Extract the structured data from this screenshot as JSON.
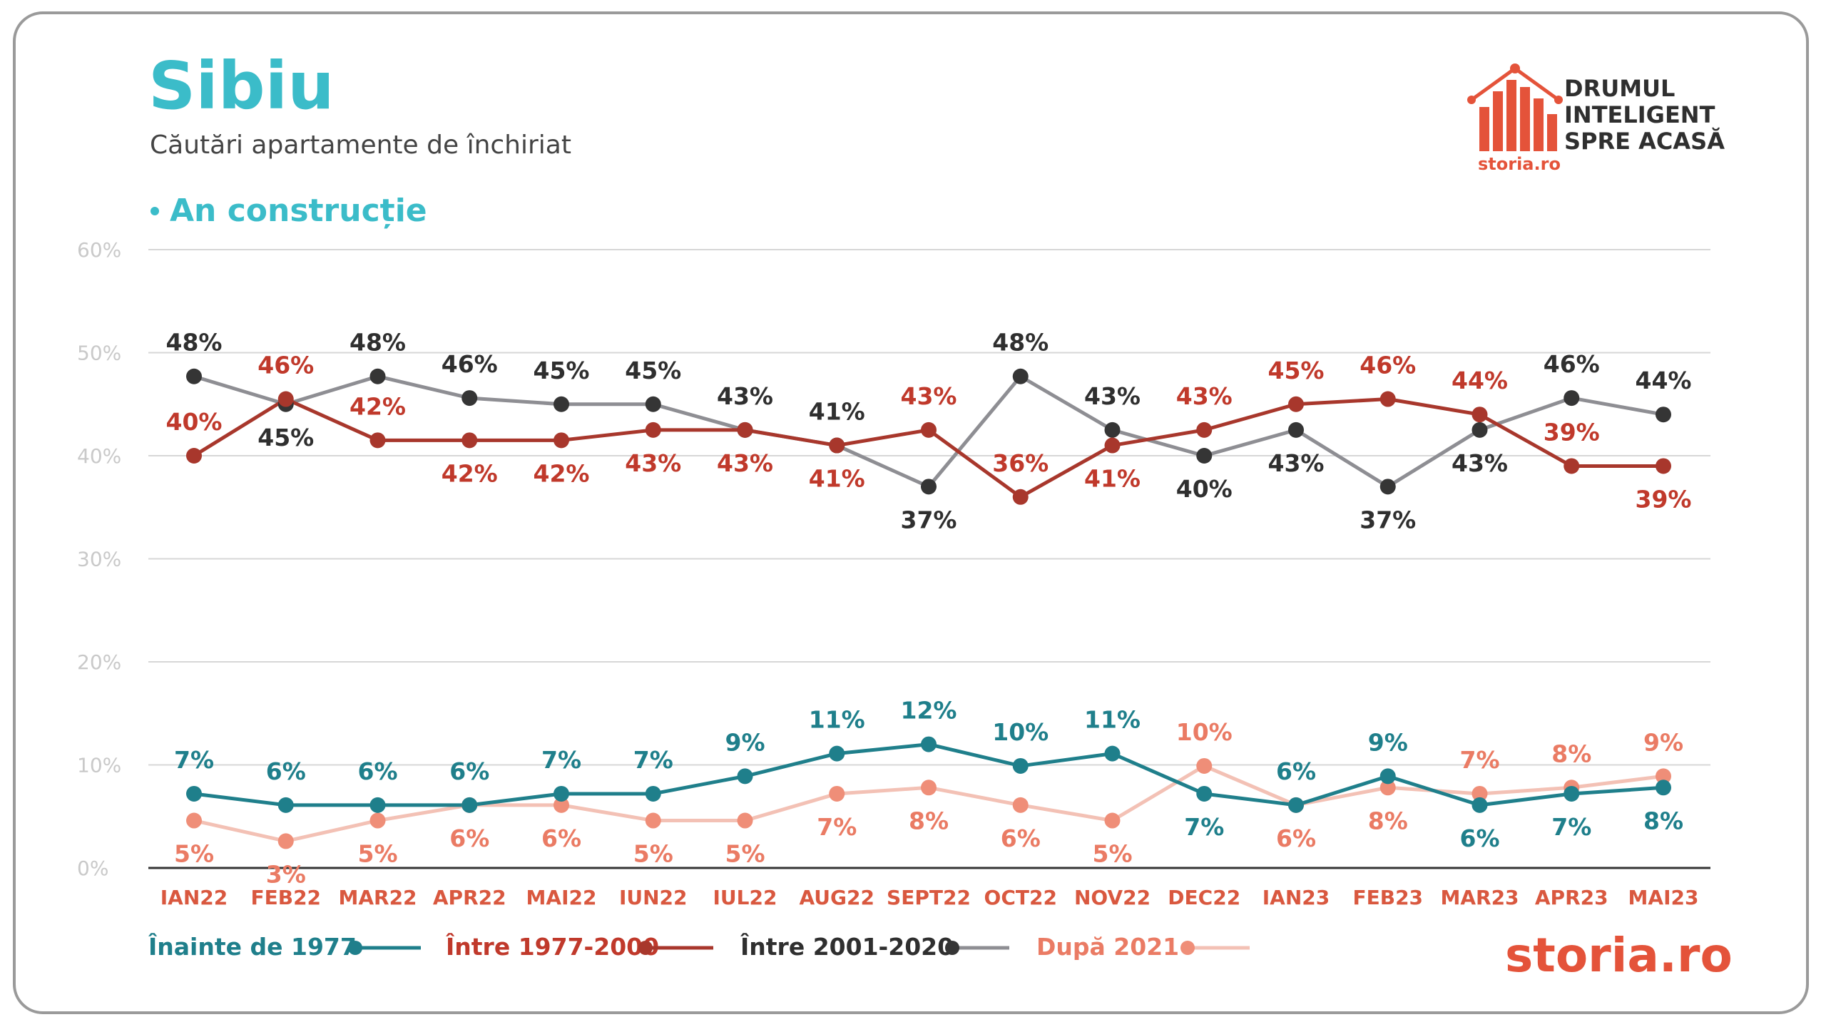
{
  "header": {
    "title": "Sibiu",
    "subtitle": "Căutări apartamente de închiriat",
    "section_label": "An construcție"
  },
  "logo": {
    "lines": [
      "DRUMUL",
      "INTELIGENT",
      "SPRE ACASĂ"
    ],
    "badge_text": "storia.ro",
    "brand_text": "storia.ro"
  },
  "chart_data": {
    "type": "line",
    "title": "Sibiu",
    "subtitle": "Căutări apartamente de închiriat",
    "categories": [
      "IAN22",
      "FEB22",
      "MAR22",
      "APR22",
      "MAI22",
      "IUN22",
      "IUL22",
      "AUG22",
      "SEPT22",
      "OCT22",
      "NOV22",
      "DEC22",
      "IAN23",
      "FEB23",
      "MAR23",
      "APR23",
      "MAI23"
    ],
    "ylim": [
      0,
      60
    ],
    "yticks": [
      "0%",
      "10%",
      "20%",
      "30%",
      "40%",
      "50%",
      "60%"
    ],
    "grid": true,
    "legend_position": "bottom",
    "series": [
      {
        "name": "Înainte de 1977",
        "color": "#1f7f8b",
        "label_color": "#1f7f8b",
        "values": [
          7.2,
          6.1,
          6.1,
          6.1,
          7.2,
          7.2,
          8.9,
          11.1,
          12.0,
          9.9,
          11.1,
          7.2,
          6.1,
          8.9,
          6.1,
          7.2,
          7.8
        ],
        "labels": [
          "7%",
          "6%",
          "6%",
          "6%",
          "7%",
          "7%",
          "9%",
          "11%",
          "12%",
          "10%",
          "11%",
          "7%",
          "6%",
          "9%",
          "6%",
          "7%",
          "8%"
        ],
        "label_pos": [
          "above",
          "above",
          "above",
          "above",
          "above",
          "above",
          "above",
          "above",
          "above",
          "above",
          "above",
          "below",
          "above",
          "above",
          "below",
          "below",
          "below"
        ]
      },
      {
        "name": "Între 1977-2000",
        "color": "#a8372c",
        "label_color": "#c0392b",
        "values": [
          40.0,
          45.5,
          41.5,
          41.5,
          41.5,
          42.5,
          42.5,
          41.0,
          42.5,
          36.0,
          41.0,
          42.5,
          45.0,
          45.5,
          44.0,
          39.0,
          39.0
        ],
        "labels": [
          "40%",
          "46%",
          "42%",
          "42%",
          "42%",
          "43%",
          "43%",
          "41%",
          "43%",
          "36%",
          "41%",
          "43%",
          "45%",
          "46%",
          "44%",
          "39%",
          "39%"
        ],
        "label_pos": [
          "above",
          "above",
          "above",
          "below",
          "below",
          "below",
          "below",
          "below",
          "above",
          "above",
          "below",
          "above",
          "above",
          "above",
          "above",
          "above",
          "below"
        ]
      },
      {
        "name": "Între 2001-2020",
        "color": "#8e8e93",
        "label_color": "#2f2f2f",
        "point_color": "#353535",
        "values": [
          47.7,
          45.0,
          47.7,
          45.6,
          45.0,
          45.0,
          42.5,
          41.0,
          37.0,
          47.7,
          42.5,
          40.0,
          42.5,
          37.0,
          42.5,
          45.6,
          44.0
        ],
        "labels": [
          "48%",
          "45%",
          "48%",
          "46%",
          "45%",
          "45%",
          "43%",
          "41%",
          "37%",
          "48%",
          "43%",
          "40%",
          "43%",
          "37%",
          "43%",
          "46%",
          "44%"
        ],
        "label_pos": [
          "above",
          "below",
          "above",
          "above",
          "above",
          "above",
          "above",
          "above",
          "below",
          "above",
          "above",
          "below",
          "below",
          "below",
          "below",
          "above",
          "above"
        ]
      },
      {
        "name": "După 2021",
        "color": "#f3c1b5",
        "label_color": "#ea7b64",
        "point_color": "#ef8e78",
        "values": [
          4.6,
          2.6,
          4.6,
          6.1,
          6.1,
          4.6,
          4.6,
          7.2,
          7.8,
          6.1,
          4.6,
          9.9,
          6.1,
          7.8,
          7.2,
          7.8,
          8.9
        ],
        "labels": [
          "5%",
          "3%",
          "5%",
          "6%",
          "6%",
          "5%",
          "5%",
          "7%",
          "8%",
          "6%",
          "5%",
          "10%",
          "6%",
          "8%",
          "7%",
          "8%",
          "9%"
        ],
        "label_pos": [
          "below",
          "below",
          "below",
          "below",
          "below",
          "below",
          "below",
          "below",
          "below",
          "below",
          "below",
          "above",
          "below",
          "below",
          "above",
          "above",
          "above"
        ]
      }
    ]
  }
}
